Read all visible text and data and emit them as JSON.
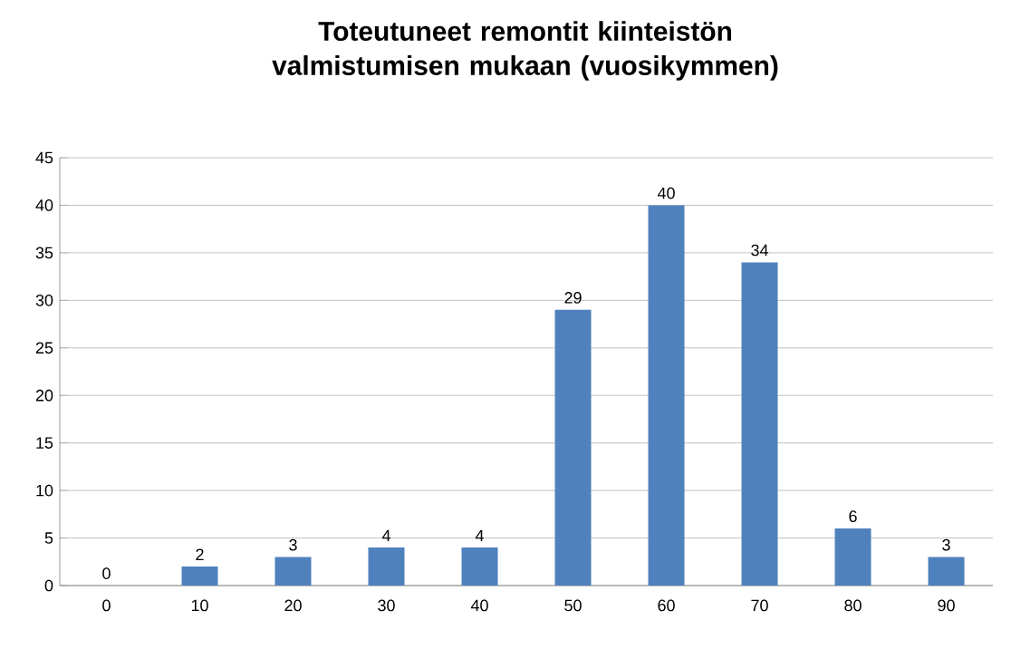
{
  "chart_data": {
    "type": "bar",
    "title": "Toteutuneet remontit kiinteistön valmistumisen mukaan (vuosikymmen)",
    "categories": [
      "0",
      "10",
      "20",
      "30",
      "40",
      "50",
      "60",
      "70",
      "80",
      "90"
    ],
    "values": [
      0,
      2,
      3,
      4,
      4,
      29,
      40,
      34,
      6,
      3
    ],
    "color": "#4f81bd",
    "ylim": [
      0,
      45
    ],
    "yticks": [
      0,
      5,
      10,
      15,
      20,
      25,
      30,
      35,
      40,
      45
    ],
    "grid": "y",
    "data_labels": true
  }
}
